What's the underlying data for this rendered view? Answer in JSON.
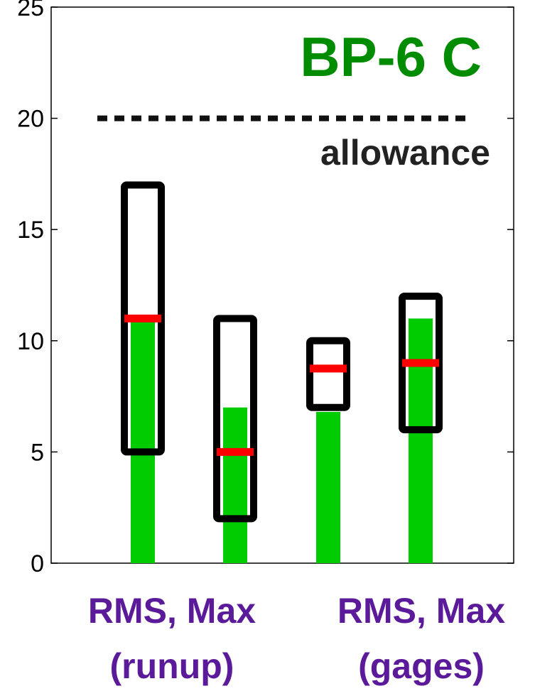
{
  "chart_data": {
    "type": "bar",
    "title": "BP-6 C",
    "ylim": [
      0,
      25
    ],
    "yticks": [
      0,
      5,
      10,
      15,
      20,
      25
    ],
    "grid": false,
    "bars": [
      {
        "value": 11,
        "range": [
          5,
          17
        ],
        "marker": 11
      },
      {
        "value": 7,
        "range": [
          2,
          11
        ],
        "marker": 5
      },
      {
        "value": 6.8,
        "range": [
          7,
          10
        ],
        "marker": 8.75
      },
      {
        "value": 11,
        "range": [
          6,
          12
        ],
        "marker": 9
      }
    ],
    "reference_line": {
      "value": 20,
      "label": "allowance",
      "style": "dashed"
    },
    "group_labels": [
      {
        "line1": "RMS, Max",
        "line2": "(runup)"
      },
      {
        "line1": "RMS, Max",
        "line2": "(gages)"
      }
    ],
    "colors": {
      "bar": "#00cc00",
      "box": "#000000",
      "marker": "#ff0000",
      "title": "#008c00",
      "reference": "#111111",
      "reference_label": "#222222",
      "group_label": "#5a1a9a"
    }
  }
}
